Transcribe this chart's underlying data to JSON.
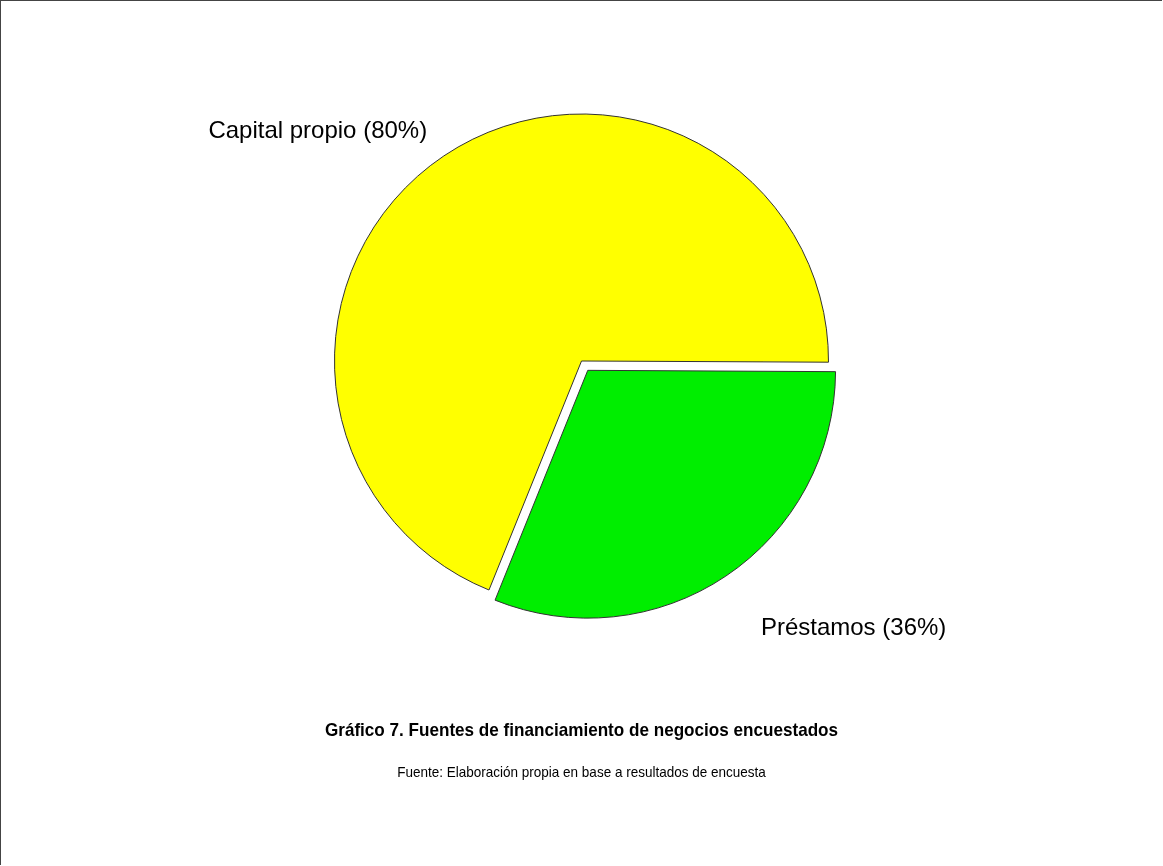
{
  "chart_data": {
    "type": "pie",
    "categories": [
      "Capital propio",
      "Préstamos"
    ],
    "values": [
      80,
      36
    ],
    "value_labels": [
      "(80%)",
      "(36%)"
    ],
    "colors": [
      "#ffff00",
      "#00ee00"
    ],
    "title": "Gráfico 7. Fuentes de financiamiento de negocios encuestados",
    "annotations": [
      "Fuente: Elaboración propia en base a resultados de encuesta"
    ],
    "legend": false
  }
}
